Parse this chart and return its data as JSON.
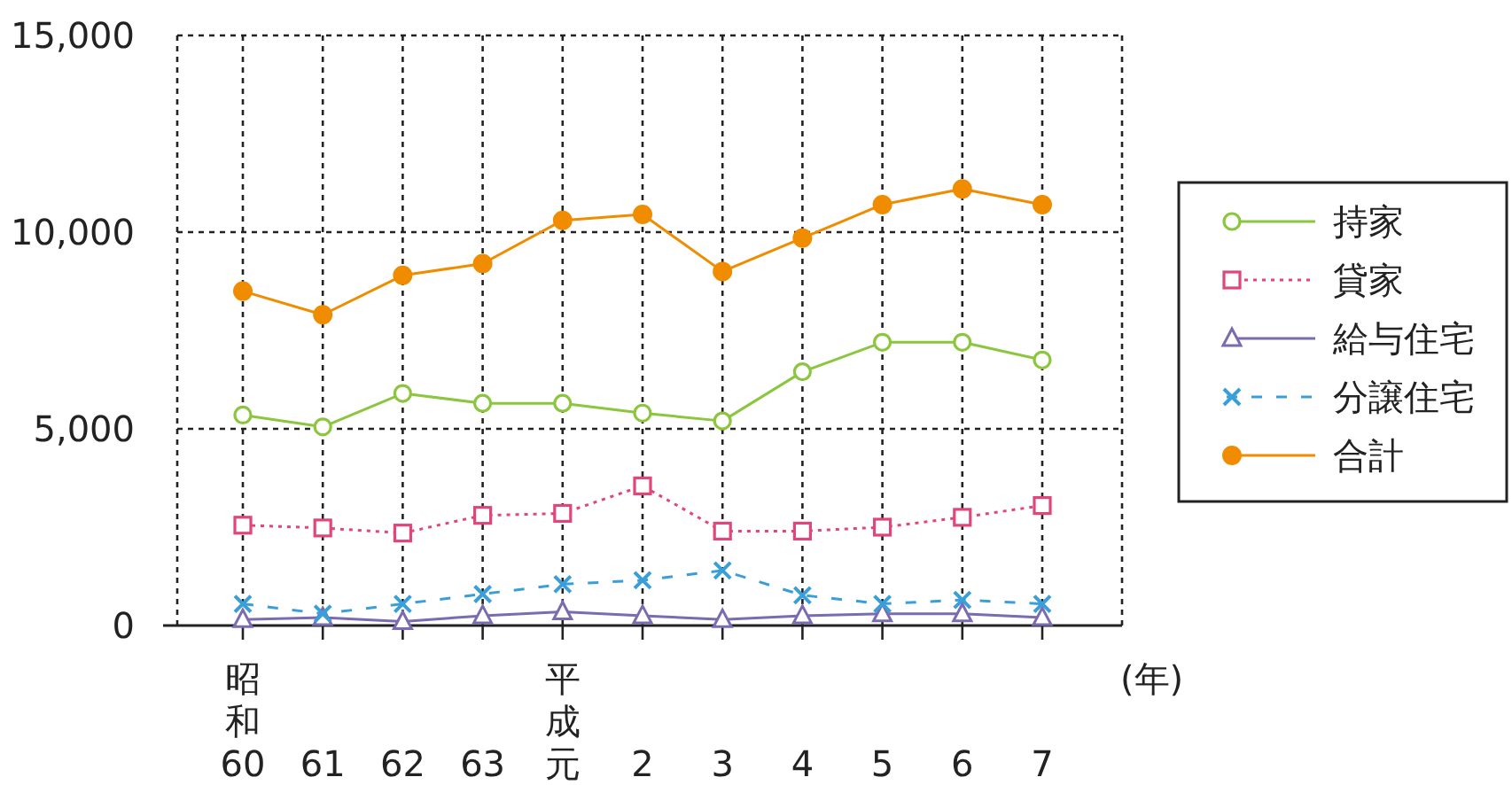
{
  "chart_data": {
    "type": "line",
    "xlabel": "(年)",
    "categories": [
      "昭和60",
      "61",
      "62",
      "63",
      "平成元",
      "2",
      "3",
      "4",
      "5",
      "6",
      "7"
    ],
    "ylim": [
      0,
      15000
    ],
    "yticks": [
      0,
      {
        "value": 5000,
        "label": "5,000"
      },
      {
        "value": 10000,
        "label": "10,000"
      },
      {
        "value": 15000,
        "label": "15,000"
      }
    ],
    "grid": true,
    "legend": "right",
    "series": [
      {
        "name": "持家",
        "color": "#8cc63f",
        "marker": "circle",
        "line_style": "solid",
        "values": [
          5350,
          5050,
          5900,
          5650,
          5650,
          5400,
          5200,
          6450,
          7200,
          7200,
          6750
        ]
      },
      {
        "name": "貸家",
        "color": "#e0457b",
        "marker": "square",
        "line_style": "dotted",
        "values": [
          2550,
          2480,
          2350,
          2800,
          2850,
          3550,
          2400,
          2400,
          2500,
          2750,
          3050
        ]
      },
      {
        "name": "給与住宅",
        "color": "#7b6bb0",
        "marker": "triangle",
        "line_style": "solid",
        "values": [
          150,
          200,
          100,
          250,
          350,
          250,
          150,
          250,
          300,
          300,
          200
        ]
      },
      {
        "name": "分譲住宅",
        "color": "#3a9fd8",
        "marker": "cross",
        "line_style": "dashed",
        "values": [
          550,
          300,
          550,
          800,
          1050,
          1150,
          1400,
          770,
          550,
          650,
          550
        ]
      },
      {
        "name": "合計",
        "color": "#f08c00",
        "marker": "circle_filled",
        "line_style": "solid",
        "values": [
          8500,
          7900,
          8900,
          9200,
          10300,
          10450,
          9000,
          9850,
          10700,
          11100,
          10700
        ]
      }
    ]
  }
}
